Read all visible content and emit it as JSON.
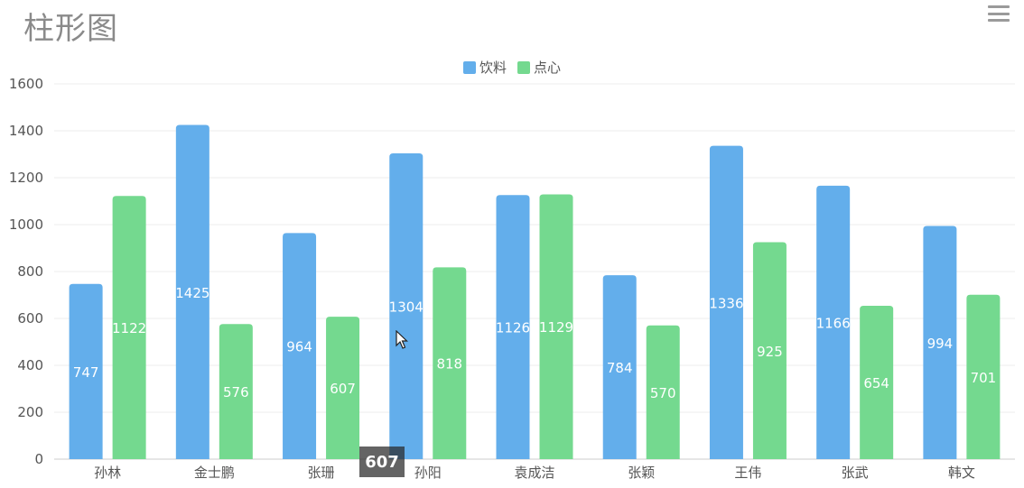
{
  "page": {
    "title": "柱形图"
  },
  "colors": {
    "series_0": "#63aeeb",
    "series_1": "#74d98f",
    "grid": "#eeeeee",
    "axis_text": "#555555",
    "label_text": "#ffffff"
  },
  "tooltip": {
    "value": "607"
  },
  "chart_data": {
    "type": "bar",
    "title": "柱形图",
    "categories": [
      "孙林",
      "金士鹏",
      "张珊",
      "孙阳",
      "袁成洁",
      "张颖",
      "王伟",
      "张武",
      "韩文"
    ],
    "series": [
      {
        "name": "饮料",
        "values": [
          747,
          1425,
          964,
          1304,
          1126,
          784,
          1336,
          1166,
          994
        ]
      },
      {
        "name": "点心",
        "values": [
          1122,
          576,
          607,
          818,
          1129,
          570,
          925,
          654,
          701
        ]
      }
    ],
    "ylim": [
      0,
      1600
    ],
    "yticks": [
      0,
      200,
      400,
      600,
      800,
      1000,
      1200,
      1400,
      1600
    ],
    "grid": true,
    "legend": "top-center",
    "data_labels": true
  }
}
